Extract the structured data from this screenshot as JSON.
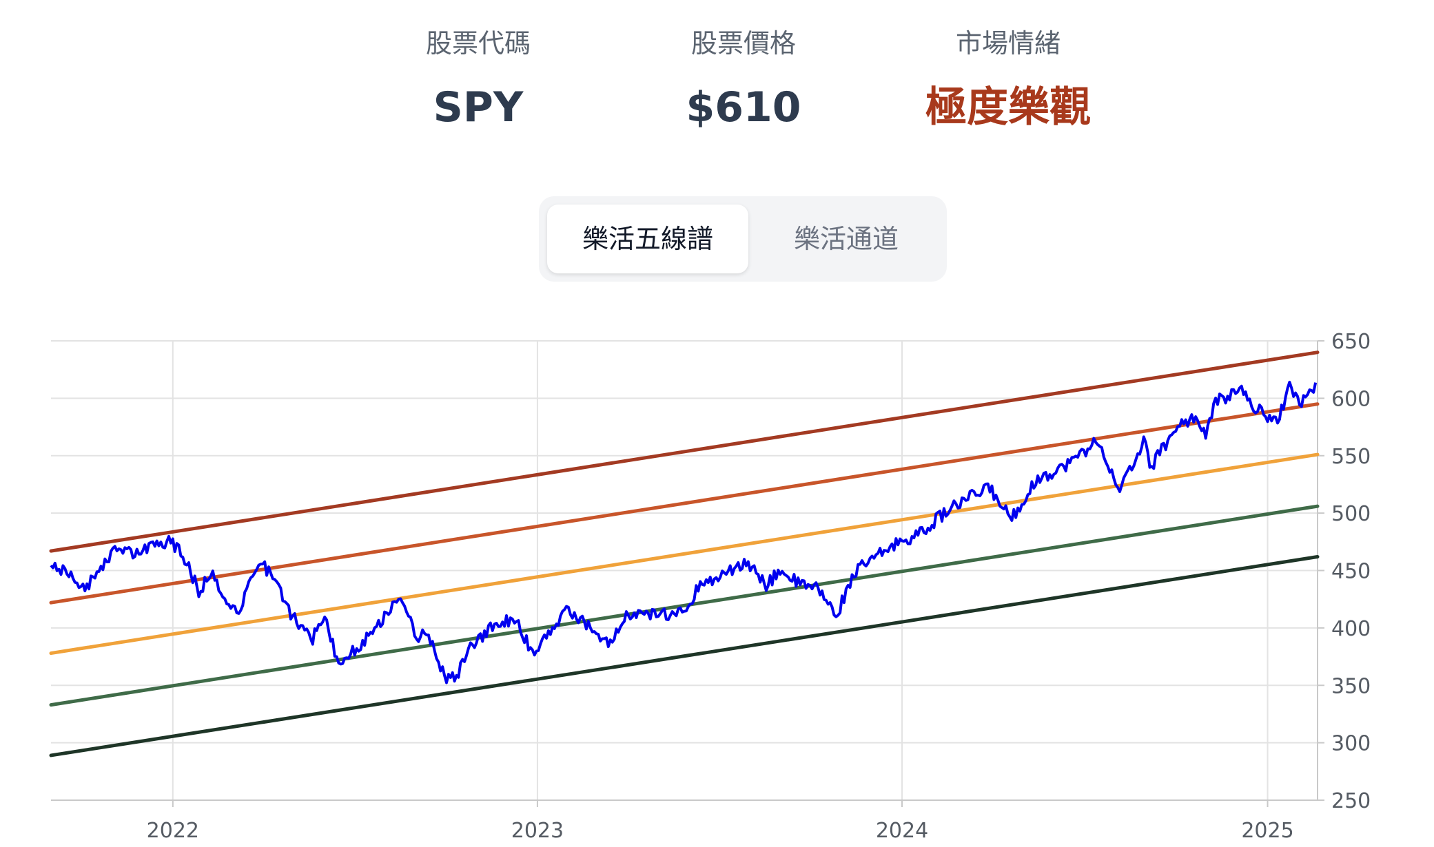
{
  "stats": [
    {
      "label": "股票代碼",
      "value": "SPY"
    },
    {
      "label": "股票價格",
      "value": "$610"
    },
    {
      "label": "市場情緒",
      "value": "極度樂觀"
    }
  ],
  "colors": {
    "sentiment": "#a8391c",
    "price_line": "#0000ee",
    "band_top": "#a33a22",
    "band_upper": "#c8552a",
    "band_mid": "#f0a23a",
    "band_lower": "#3f6b48",
    "band_bottom": "#1e3527"
  },
  "tabs": [
    {
      "label": "樂活五線譜",
      "active": true
    },
    {
      "label": "樂活通道",
      "active": false
    }
  ],
  "chart_data": {
    "type": "line",
    "x_range": [
      "2021-09-01",
      "2025-02-20"
    ],
    "ylim": [
      250,
      650
    ],
    "y_ticks": [
      250,
      300,
      350,
      400,
      450,
      500,
      550,
      600,
      650
    ],
    "x_ticks": [
      {
        "date": "2022-01-01",
        "label": "2022"
      },
      {
        "date": "2023-01-01",
        "label": "2023"
      },
      {
        "date": "2024-01-01",
        "label": "2024"
      },
      {
        "date": "2025-01-01",
        "label": "2025"
      }
    ],
    "grid": true,
    "bands": [
      {
        "color": "#a33a22",
        "points": [
          [
            "2021-09-01",
            467
          ],
          [
            "2025-02-20",
            640
          ]
        ]
      },
      {
        "color": "#c8552a",
        "points": [
          [
            "2021-09-01",
            422
          ],
          [
            "2025-02-20",
            595
          ]
        ]
      },
      {
        "color": "#f0a23a",
        "points": [
          [
            "2021-09-01",
            378
          ],
          [
            "2025-02-20",
            551
          ]
        ]
      },
      {
        "color": "#3f6b48",
        "points": [
          [
            "2021-09-01",
            333
          ],
          [
            "2025-02-20",
            506
          ]
        ]
      },
      {
        "color": "#1e3527",
        "points": [
          [
            "2021-09-01",
            289
          ],
          [
            "2025-02-20",
            462
          ]
        ]
      }
    ],
    "series": [
      {
        "color": "#0000ee",
        "points": [
          [
            "2021-09-01",
            452
          ],
          [
            "2021-09-20",
            447
          ],
          [
            "2021-10-04",
            432
          ],
          [
            "2021-10-20",
            450
          ],
          [
            "2021-11-05",
            468
          ],
          [
            "2021-11-25",
            465
          ],
          [
            "2021-12-10",
            470
          ],
          [
            "2021-12-29",
            476
          ],
          [
            "2022-01-10",
            466
          ],
          [
            "2022-01-27",
            432
          ],
          [
            "2022-02-10",
            450
          ],
          [
            "2022-02-24",
            420
          ],
          [
            "2022-03-08",
            416
          ],
          [
            "2022-03-29",
            460
          ],
          [
            "2022-04-14",
            440
          ],
          [
            "2022-04-29",
            412
          ],
          [
            "2022-05-20",
            389
          ],
          [
            "2022-06-02",
            413
          ],
          [
            "2022-06-16",
            367
          ],
          [
            "2022-07-01",
            380
          ],
          [
            "2022-07-20",
            396
          ],
          [
            "2022-08-16",
            429
          ],
          [
            "2022-09-02",
            393
          ],
          [
            "2022-09-13",
            394
          ],
          [
            "2022-09-30",
            357
          ],
          [
            "2022-10-12",
            357
          ],
          [
            "2022-10-28",
            386
          ],
          [
            "2022-11-15",
            399
          ],
          [
            "2022-11-30",
            407
          ],
          [
            "2022-12-13",
            401
          ],
          [
            "2022-12-28",
            377
          ],
          [
            "2023-01-12",
            398
          ],
          [
            "2023-02-02",
            416
          ],
          [
            "2023-02-23",
            400
          ],
          [
            "2023-03-13",
            385
          ],
          [
            "2023-03-31",
            409
          ],
          [
            "2023-04-20",
            411
          ],
          [
            "2023-05-10",
            412
          ],
          [
            "2023-05-31",
            417
          ],
          [
            "2023-06-15",
            442
          ],
          [
            "2023-06-30",
            443
          ],
          [
            "2023-07-31",
            457
          ],
          [
            "2023-08-18",
            436
          ],
          [
            "2023-09-01",
            451
          ],
          [
            "2023-09-20",
            438
          ],
          [
            "2023-10-10",
            434
          ],
          [
            "2023-10-27",
            410
          ],
          [
            "2023-11-14",
            448
          ],
          [
            "2023-12-01",
            459
          ],
          [
            "2023-12-29",
            475
          ],
          [
            "2024-01-19",
            482
          ],
          [
            "2024-02-15",
            502
          ],
          [
            "2024-03-28",
            523
          ],
          [
            "2024-04-19",
            495
          ],
          [
            "2024-05-15",
            529
          ],
          [
            "2024-06-14",
            542
          ],
          [
            "2024-07-16",
            564
          ],
          [
            "2024-08-05",
            517
          ],
          [
            "2024-08-30",
            563
          ],
          [
            "2024-09-06",
            540
          ],
          [
            "2024-09-30",
            573
          ],
          [
            "2024-10-18",
            584
          ],
          [
            "2024-10-31",
            569
          ],
          [
            "2024-11-11",
            598
          ],
          [
            "2024-12-06",
            607
          ],
          [
            "2024-12-20",
            591
          ],
          [
            "2025-01-10",
            580
          ],
          [
            "2025-01-23",
            609
          ],
          [
            "2025-02-03",
            597
          ],
          [
            "2025-02-19",
            611
          ]
        ]
      }
    ]
  }
}
